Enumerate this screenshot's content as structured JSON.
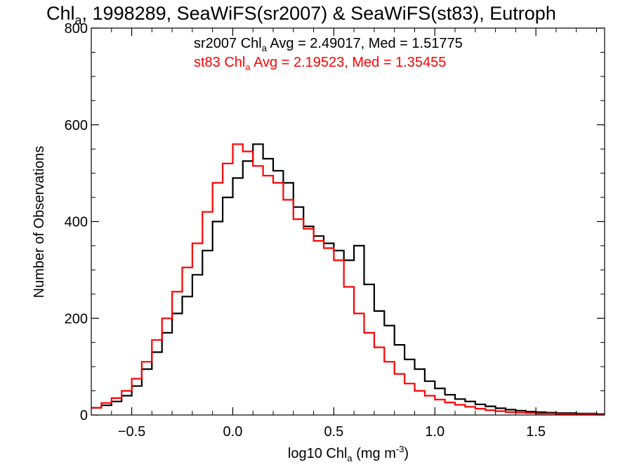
{
  "chart_data": {
    "type": "line",
    "title": {
      "prefix": "Chl",
      "sub": "a",
      "rest": ", 1998289, SeaWiFS(sr2007) & SeaWiFS(st83), Eutroph"
    },
    "xlabel": {
      "prefix": "log10 Chl",
      "sub": "a",
      "mid": " (mg m",
      "sup": "-3",
      "suffix": ")"
    },
    "ylabel": "Number of Observations",
    "xlim": [
      -0.7,
      1.84
    ],
    "ylim": [
      0,
      800
    ],
    "xticks": [
      -0.5,
      0.0,
      0.5,
      1.0,
      1.5
    ],
    "xtick_labels": [
      "−0.5",
      "0.0",
      "0.5",
      "1.0",
      "1.5"
    ],
    "yticks": [
      0,
      200,
      400,
      600,
      800
    ],
    "ytick_labels": [
      "0",
      "200",
      "400",
      "600",
      "800"
    ],
    "grid": false,
    "annotations": [
      {
        "prefix": "sr2007 Chl",
        "sub": "a",
        "rest": " Avg = 2.49017, Med = 1.51775",
        "color": "#000000"
      },
      {
        "prefix": "st83 Chl",
        "sub": "a",
        "rest": " Avg = 2.19523, Med = 1.35455",
        "color": "#ff0000"
      }
    ],
    "x": [
      -0.7,
      -0.65,
      -0.6,
      -0.55,
      -0.5,
      -0.45,
      -0.4,
      -0.35,
      -0.3,
      -0.25,
      -0.2,
      -0.15,
      -0.1,
      -0.05,
      0.0,
      0.05,
      0.1,
      0.15,
      0.2,
      0.25,
      0.3,
      0.35,
      0.4,
      0.45,
      0.5,
      0.55,
      0.6,
      0.65,
      0.7,
      0.75,
      0.8,
      0.85,
      0.9,
      0.95,
      1.0,
      1.05,
      1.1,
      1.15,
      1.2,
      1.25,
      1.3,
      1.35,
      1.4,
      1.45,
      1.5,
      1.55,
      1.6,
      1.65,
      1.7,
      1.75,
      1.8,
      1.84
    ],
    "series": [
      {
        "name": "sr2007",
        "color": "#000000",
        "values": [
          15,
          20,
          28,
          40,
          60,
          95,
          130,
          170,
          210,
          245,
          290,
          340,
          400,
          450,
          490,
          525,
          560,
          530,
          505,
          480,
          430,
          390,
          370,
          355,
          340,
          320,
          350,
          270,
          215,
          185,
          145,
          115,
          95,
          70,
          55,
          42,
          33,
          28,
          22,
          18,
          14,
          11,
          9,
          7,
          6,
          5,
          4,
          4,
          3,
          3,
          2,
          2
        ]
      },
      {
        "name": "st83",
        "color": "#ff0000",
        "values": [
          15,
          25,
          35,
          50,
          75,
          110,
          155,
          200,
          255,
          305,
          355,
          420,
          480,
          520,
          560,
          545,
          515,
          495,
          480,
          445,
          405,
          385,
          360,
          345,
          320,
          265,
          210,
          170,
          140,
          110,
          85,
          65,
          50,
          40,
          32,
          26,
          21,
          17,
          13,
          10,
          8,
          6,
          5,
          4,
          3,
          3,
          2,
          2,
          2,
          2,
          1,
          1
        ]
      }
    ]
  }
}
